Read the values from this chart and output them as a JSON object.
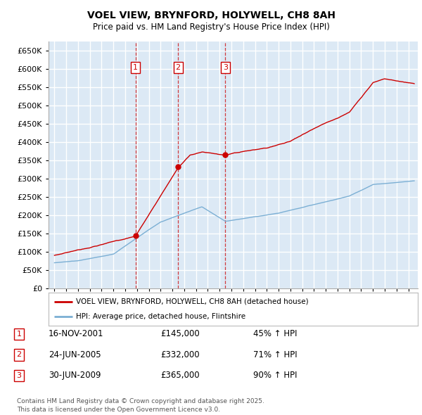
{
  "title": "VOEL VIEW, BRYNFORD, HOLYWELL, CH8 8AH",
  "subtitle": "Price paid vs. HM Land Registry's House Price Index (HPI)",
  "ylim": [
    0,
    675000
  ],
  "yticks": [
    0,
    50000,
    100000,
    150000,
    200000,
    250000,
    300000,
    350000,
    400000,
    450000,
    500000,
    550000,
    600000,
    650000
  ],
  "xlim_start": 1994.5,
  "xlim_end": 2025.8,
  "bg_color": "#dce9f5",
  "plot_bg": "#dce9f5",
  "grid_color": "#ffffff",
  "red_color": "#cc0000",
  "blue_color": "#7bafd4",
  "sales": [
    {
      "num": 1,
      "date": "16-NOV-2001",
      "price": 145000,
      "pct": "45%",
      "x": 2001.87
    },
    {
      "num": 2,
      "date": "24-JUN-2005",
      "price": 332000,
      "pct": "71%",
      "x": 2005.48
    },
    {
      "num": 3,
      "date": "30-JUN-2009",
      "price": 365000,
      "pct": "90%",
      "x": 2009.49
    }
  ],
  "legend_label_red": "VOEL VIEW, BRYNFORD, HOLYWELL, CH8 8AH (detached house)",
  "legend_label_blue": "HPI: Average price, detached house, Flintshire",
  "footer": "Contains HM Land Registry data © Crown copyright and database right 2025.\nThis data is licensed under the Open Government Licence v3.0.",
  "table_rows": [
    [
      "1",
      "16-NOV-2001",
      "£145,000",
      "45% ↑ HPI"
    ],
    [
      "2",
      "24-JUN-2005",
      "£332,000",
      "71% ↑ HPI"
    ],
    [
      "3",
      "30-JUN-2009",
      "£365,000",
      "90% ↑ HPI"
    ]
  ]
}
